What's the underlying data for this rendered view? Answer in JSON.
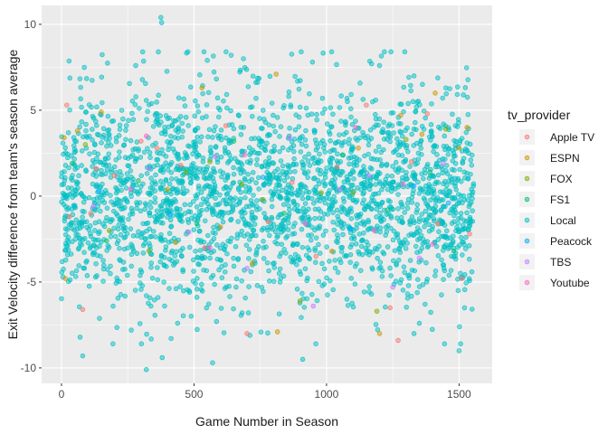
{
  "chart_data": {
    "type": "scatter",
    "title": "",
    "xlabel": "Game Number in Season",
    "ylabel": "Exit Velocity difference from team's season average",
    "xlim": [
      -75,
      1625
    ],
    "ylim": [
      -10.9,
      11.1
    ],
    "x_ticks": [
      0,
      500,
      1000,
      1500
    ],
    "y_ticks": [
      -10,
      -5,
      0,
      5,
      10
    ],
    "grid": true,
    "legend": {
      "title": "tv_provider",
      "placement": "right"
    },
    "series": [
      {
        "name": "Apple TV",
        "color": "#F8766D",
        "points": [
          [
            20,
            5.3
          ],
          [
            30,
            -1.2
          ],
          [
            80,
            -6.6
          ],
          [
            110,
            -1.0
          ],
          [
            130,
            1.6
          ],
          [
            200,
            1.2
          ],
          [
            300,
            3.2
          ],
          [
            360,
            2.8
          ],
          [
            450,
            1.8
          ],
          [
            540,
            -3.0
          ],
          [
            620,
            4.1
          ],
          [
            700,
            -8.0
          ],
          [
            780,
            -1.5
          ],
          [
            870,
            0.8
          ],
          [
            960,
            -3.5
          ],
          [
            1040,
            1.7
          ],
          [
            1150,
            5.3
          ],
          [
            1240,
            -6.5
          ],
          [
            1270,
            -8.4
          ],
          [
            1320,
            2.0
          ],
          [
            1380,
            4.8
          ],
          [
            1420,
            -1.6
          ],
          [
            1510,
            -4.8
          ],
          [
            1540,
            -2.2
          ]
        ]
      },
      {
        "name": "ESPN",
        "color": "#CD9600",
        "points": [
          [
            10,
            3.4
          ],
          [
            15,
            -4.8
          ],
          [
            60,
            3.8
          ],
          [
            150,
            4.9
          ],
          [
            400,
            0.4
          ],
          [
            430,
            -2.7
          ],
          [
            530,
            6.3
          ],
          [
            600,
            -1.8
          ],
          [
            720,
            -3.9
          ],
          [
            810,
            7.1
          ],
          [
            815,
            -7.9
          ],
          [
            1020,
            -3.2
          ],
          [
            1120,
            2.8
          ],
          [
            1200,
            -8.0
          ],
          [
            1280,
            4.7
          ],
          [
            1360,
            3.6
          ],
          [
            1410,
            6.0
          ],
          [
            1500,
            2.8
          ],
          [
            1530,
            4.0
          ]
        ]
      },
      {
        "name": "FOX",
        "color": "#7CAE00",
        "points": [
          [
            90,
            3.0
          ],
          [
            180,
            -2.0
          ],
          [
            330,
            -3.2
          ],
          [
            470,
            1.4
          ],
          [
            560,
            2.0
          ],
          [
            680,
            0.7
          ],
          [
            760,
            -0.2
          ],
          [
            900,
            -6.1
          ],
          [
            980,
            0.2
          ],
          [
            1100,
            0.2
          ],
          [
            1190,
            -6.7
          ],
          [
            1300,
            3.3
          ],
          [
            1450,
            3.9
          ]
        ]
      },
      {
        "name": "FS1",
        "color": "#00BE67",
        "points": [
          [
            40,
            1.9
          ],
          [
            170,
            -2.6
          ],
          [
            290,
            0.9
          ],
          [
            510,
            -1.6
          ],
          [
            650,
            3.2
          ],
          [
            840,
            -1.0
          ],
          [
            1060,
            2.4
          ],
          [
            1230,
            -0.8
          ],
          [
            1390,
            1.4
          ],
          [
            1480,
            -3.2
          ]
        ]
      },
      {
        "name": "Peacock",
        "color": "#00A9FF",
        "points": [
          [
            140,
            0.3
          ],
          [
            410,
            -1.1
          ],
          [
            760,
            1.1
          ],
          [
            1090,
            -1.9
          ],
          [
            1330,
            0.6
          ],
          [
            1460,
            -0.4
          ]
        ]
      },
      {
        "name": "TBS",
        "color": "#C77CFF",
        "points": [
          [
            120,
            -0.6
          ],
          [
            330,
            1.6
          ],
          [
            480,
            -2.1
          ],
          [
            580,
            2.3
          ],
          [
            700,
            -4.2
          ],
          [
            860,
            3.4
          ],
          [
            950,
            -6.4
          ],
          [
            1050,
            0.4
          ],
          [
            1160,
            1.2
          ],
          [
            1250,
            -5.3
          ],
          [
            1350,
            -3.6
          ],
          [
            1440,
            1.9
          ]
        ]
      },
      {
        "name": "Youtube",
        "color": "#FF61CC",
        "points": [
          [
            260,
            0.4
          ],
          [
            320,
            3.5
          ],
          [
            560,
            -3.0
          ],
          [
            690,
            2.4
          ],
          [
            920,
            -1.6
          ],
          [
            1110,
            4.0
          ],
          [
            1180,
            -2.0
          ],
          [
            1290,
            0.7
          ],
          [
            1400,
            -2.8
          ]
        ]
      }
    ],
    "dense_series": {
      "name": "Local",
      "color": "#00BFC4",
      "x_range": [
        0,
        1555
      ],
      "point_count": 2600,
      "center": 0,
      "spread_sd": 3.1,
      "extremes": [
        [
          375,
          10.4
        ],
        [
          378,
          10.1
        ],
        [
          320,
          -10.1
        ],
        [
          380,
          -9.4
        ],
        [
          570,
          -9.7
        ],
        [
          910,
          -9.5
        ],
        [
          640,
          8.2
        ],
        [
          550,
          7.9
        ],
        [
          1170,
          7.7
        ],
        [
          1200,
          7.6
        ],
        [
          280,
          7.6
        ],
        [
          1330,
          7.0
        ],
        [
          80,
          -9.3
        ],
        [
          1330,
          -8.0
        ],
        [
          1500,
          -9.0
        ]
      ]
    }
  }
}
